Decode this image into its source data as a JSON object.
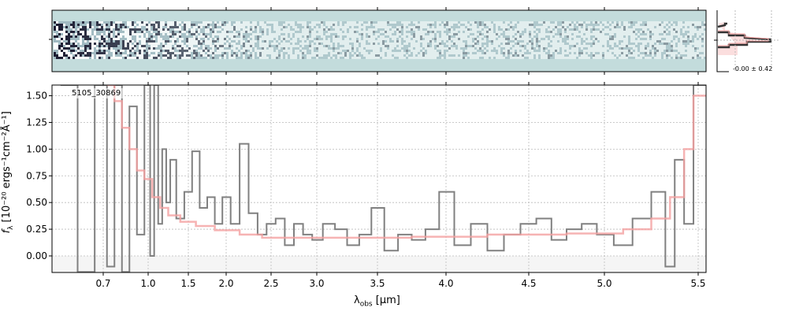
{
  "chart_data": [
    {
      "type": "line",
      "panel": "main-spectrum",
      "label": "5105_30869",
      "xlabel": "λobs [μm]",
      "xlabel_main": "λ",
      "xlabel_sub": "obs",
      "xlabel_unit": " [μm]",
      "ylabel": "fλ [10⁻²⁰ ergs⁻¹cm⁻²Å⁻¹]",
      "ylabel_f": "f",
      "ylabel_sub": "λ",
      "ylabel_rest": " [10⁻²⁰ ergs⁻¹cm⁻²Å⁻¹]",
      "xlim": [
        0.55,
        5.52
      ],
      "ylim": [
        -0.155,
        1.6
      ],
      "grid": true,
      "x_ticks": [
        0.7,
        1.0,
        1.5,
        2.0,
        2.5,
        3.0,
        3.5,
        4.0,
        4.5,
        5.0,
        5.5
      ],
      "x_tick_labels": [
        "0.7",
        "1.0",
        "1.5",
        "2.0",
        "2.5",
        "3.0",
        "3.5",
        "4.0",
        "4.5",
        "5.0",
        "5.5"
      ],
      "y_ticks": [
        0,
        0.25,
        0.5,
        0.75,
        1.0,
        1.25,
        1.5
      ],
      "y_tick_labels": [
        "0.00",
        "0.25",
        "0.50",
        "0.75",
        "1.00",
        "1.25",
        "1.50"
      ],
      "series": [
        {
          "kind": "data",
          "color": "#808080",
          "x": [
            0.6,
            0.65,
            0.7,
            0.75,
            0.8,
            0.85,
            0.9,
            0.95,
            1.0,
            1.05,
            1.1,
            1.15,
            1.2,
            1.25,
            1.3,
            1.4,
            1.5,
            1.6,
            1.7,
            1.8,
            1.9,
            2.0,
            2.1,
            2.2,
            2.3,
            2.4,
            2.5,
            2.6,
            2.7,
            2.8,
            2.9,
            3.0,
            3.1,
            3.2,
            3.3,
            3.4,
            3.5,
            3.6,
            3.7,
            3.8,
            3.9,
            4.0,
            4.1,
            4.2,
            4.3,
            4.4,
            4.5,
            4.6,
            4.7,
            4.8,
            4.9,
            5.0,
            5.1,
            5.2,
            5.3,
            5.35,
            5.4,
            5.45,
            5.5
          ],
          "y": [
            1.6,
            -0.15,
            1.6,
            -0.1,
            1.6,
            -0.15,
            1.4,
            0.2,
            1.6,
            0.0,
            1.6,
            0.3,
            1.0,
            0.5,
            0.9,
            0.35,
            0.6,
            0.98,
            0.45,
            0.55,
            0.3,
            0.55,
            0.3,
            1.05,
            0.4,
            0.2,
            0.3,
            0.35,
            0.1,
            0.3,
            0.2,
            0.15,
            0.3,
            0.25,
            0.1,
            0.2,
            0.45,
            0.05,
            0.2,
            0.15,
            0.25,
            0.6,
            0.1,
            0.3,
            0.05,
            0.2,
            0.3,
            0.35,
            0.15,
            0.25,
            0.3,
            0.2,
            0.1,
            0.35,
            0.6,
            -0.1,
            0.9,
            0.3,
            1.6
          ]
        },
        {
          "kind": "model",
          "color": "#f4a0a0",
          "x": [
            0.75,
            0.8,
            0.85,
            0.9,
            0.95,
            1.0,
            1.1,
            1.2,
            1.3,
            1.5,
            1.7,
            2.0,
            2.3,
            2.5,
            3.0,
            3.5,
            4.0,
            4.5,
            5.0,
            5.2,
            5.3,
            5.4,
            5.45,
            5.5
          ],
          "y": [
            1.6,
            1.45,
            1.2,
            1.0,
            0.8,
            0.72,
            0.55,
            0.45,
            0.38,
            0.32,
            0.28,
            0.24,
            0.2,
            0.17,
            0.17,
            0.17,
            0.18,
            0.2,
            0.21,
            0.25,
            0.35,
            0.55,
            1.0,
            1.5
          ]
        }
      ]
    },
    {
      "type": "heatmap",
      "panel": "2d-spectrum",
      "colors": [
        "#c3dcdc",
        "#ffffff",
        "#1a1a30"
      ]
    },
    {
      "type": "bar",
      "panel": "residual-histogram",
      "annotation": "-0.00 ± 0.42",
      "colors": [
        "#333333",
        "#f4a0a0"
      ]
    }
  ]
}
